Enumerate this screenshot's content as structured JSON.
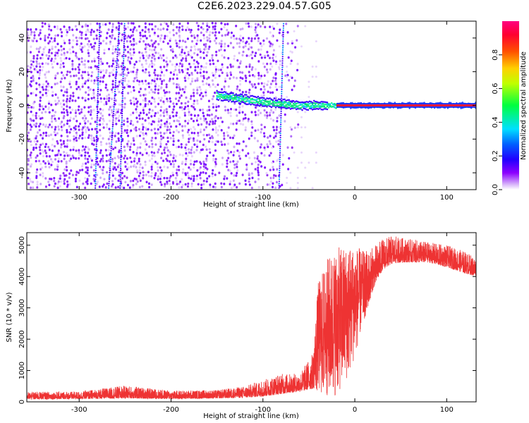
{
  "page": {
    "title": "C2E6.2023.229.04.57.G05"
  },
  "chart_data": [
    {
      "type": "heatmap",
      "title": "",
      "xlabel": "Height of straight line (km)",
      "ylabel": "Frequency (Hz)",
      "xlim": [
        -357,
        132
      ],
      "ylim": [
        -50,
        50
      ],
      "x_ticks": [
        -300,
        -200,
        -100,
        0,
        100
      ],
      "y_ticks": [
        -40,
        -20,
        0,
        20,
        40
      ],
      "colorbar": {
        "label": "Normalized spectral amplitude",
        "range": [
          0,
          1
        ],
        "ticks": [
          0.0,
          0.2,
          0.4,
          0.6,
          0.8
        ],
        "colormap": [
          "#ffffff",
          "#d7b4f8",
          "#8000ff",
          "#0040ff",
          "#00ffff",
          "#00ff00",
          "#ffff00",
          "#ff8000",
          "#ff0000",
          "#ff0080"
        ]
      },
      "features": {
        "noise_region_x": [
          -357,
          -80
        ],
        "carrier_frequency": 0,
        "carrier_start_x": -150,
        "stripe_x": [
          -280,
          -262,
          -253,
          -80
        ]
      }
    },
    {
      "type": "line",
      "title": "",
      "xlabel": "Height of straight line (km)",
      "ylabel": "SNR (10 * v/v)",
      "xlim": [
        -357,
        132
      ],
      "ylim": [
        0,
        5400
      ],
      "x_ticks": [
        -300,
        -200,
        -100,
        0,
        100
      ],
      "y_ticks": [
        0,
        1000,
        2000,
        3000,
        4000,
        5000
      ],
      "series": [
        {
          "color": "#ee3333",
          "envelope": {
            "x": [
              -357,
              -300,
              -250,
              -200,
              -150,
              -120,
              -100,
              -80,
              -60,
              -45,
              -40,
              -30,
              -20,
              -10,
              0,
              10,
              20,
              30,
              40,
              50,
              60,
              80,
              100,
              120,
              132
            ],
            "low": [
              80,
              90,
              110,
              90,
              110,
              130,
              170,
              250,
              330,
              420,
              250,
              150,
              200,
              600,
              1400,
              2600,
              3600,
              4200,
              4400,
              4450,
              4450,
              4450,
              4300,
              4100,
              4000
            ],
            "high": [
              320,
              330,
              520,
              360,
              380,
              500,
              700,
              900,
              900,
              1600,
              3800,
              4600,
              4900,
              5000,
              5000,
              4800,
              4950,
              5200,
              5300,
              5250,
              5200,
              5100,
              5000,
              4800,
              4600
            ]
          }
        }
      ]
    }
  ]
}
